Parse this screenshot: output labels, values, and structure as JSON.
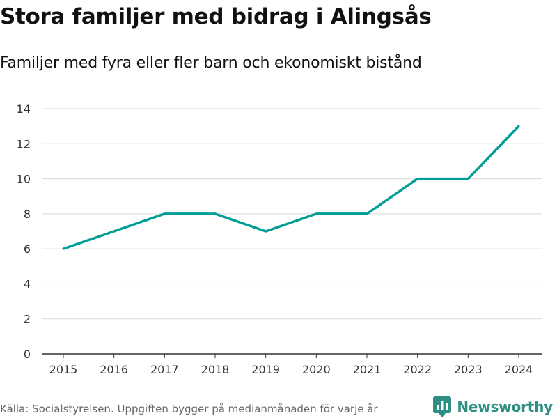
{
  "chart_data": {
    "type": "line",
    "title": "Stora familjer med bidrag i Alingsås",
    "subtitle": "Familjer med fyra eller fler barn och ekonomiskt bistånd",
    "x": [
      "2015",
      "2016",
      "2017",
      "2018",
      "2019",
      "2020",
      "2021",
      "2022",
      "2023",
      "2024"
    ],
    "series": [
      {
        "name": "Familjer",
        "values": [
          6,
          7,
          8,
          8,
          7,
          8,
          8,
          10,
          10,
          13
        ],
        "color": "#009e96"
      }
    ],
    "ylim": [
      0,
      14
    ],
    "yticks": [
      0,
      2,
      4,
      6,
      8,
      10,
      12,
      14
    ],
    "xlabel": "",
    "ylabel": "",
    "grid": true,
    "gridColor": "#d9d9d9",
    "axisColor": "#333333"
  },
  "footer": {
    "source": "Källa: Socialstyrelsen. Uppgiften bygger på medianmånaden för varje år",
    "brand": "Newsworthy",
    "brandColor": "#2e8f85"
  }
}
